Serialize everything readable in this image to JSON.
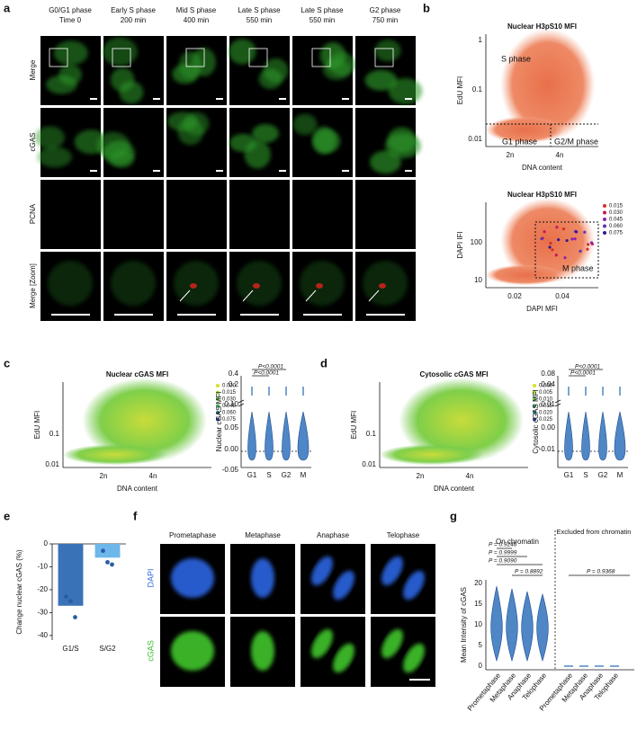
{
  "panel_a": {
    "label": "a",
    "columns": [
      {
        "phase": "G0/G1 phase",
        "time": "Time 0"
      },
      {
        "phase": "Early S phase",
        "time": "200 min"
      },
      {
        "phase": "Mid S phase",
        "time": "400 min"
      },
      {
        "phase": "Late S phase",
        "time": "550 min"
      },
      {
        "phase": "Late S phase",
        "time": "550 min"
      },
      {
        "phase": "G2 phase",
        "time": "750 min"
      }
    ],
    "rows": [
      "Merge",
      "cGAS",
      "PCNA",
      "Merge [Zoom]"
    ]
  },
  "panel_b": {
    "label": "b",
    "top": {
      "title": "Nuclear H3pS10 MFI",
      "y_label": "EdU MFI",
      "x_label": "DNA content",
      "yticks": [
        "1",
        "0.1",
        "0.01"
      ],
      "xticks": [
        "2n",
        "4n"
      ],
      "regions": [
        "S phase",
        "G1 phase",
        "G2/M phase"
      ]
    },
    "bottom": {
      "title": "Nuclear H3pS10 MFI",
      "y_label": "DAPI IFI",
      "x_label": "DAPI MFI",
      "yticks": [
        "100",
        "10"
      ],
      "xticks": [
        "0.02",
        "0.04"
      ],
      "region": "M phase",
      "legend": [
        "0.015",
        "0.030",
        "0.045",
        "0.060",
        "0.075"
      ]
    }
  },
  "panel_c": {
    "label": "c",
    "scatter": {
      "title": "Nuclear cGAS MFI",
      "y_label": "EdU MFI",
      "x_label": "DNA content",
      "yticks": [
        "0.1",
        "0.01"
      ],
      "xticks": [
        "2n",
        "4n"
      ],
      "legend": [
        "0.000",
        "0.015",
        "0.030",
        "0.045",
        "0.060",
        "0.075"
      ]
    },
    "violin": {
      "y_label": "Nuclear cGAS MFI",
      "yticks": [
        "0.4",
        "0.2",
        "0.10",
        "0.05",
        "0.00",
        "-0.05"
      ],
      "categories": [
        "G1",
        "S",
        "G2",
        "M"
      ],
      "pvalues": [
        "P<0.0001",
        "P<0.0001"
      ]
    }
  },
  "panel_d": {
    "label": "d",
    "scatter": {
      "title": "Cytosolic cGAS MFI",
      "y_label": "EdU MFI",
      "x_label": "DNA content",
      "yticks": [
        "0.1",
        "0.01"
      ],
      "xticks": [
        "2n",
        "4n"
      ],
      "legend": [
        "0.000",
        "0.005",
        "0.010",
        "0.015",
        "0.020",
        "0.025"
      ]
    },
    "violin": {
      "y_label": "Cytosolic cGAS MFI",
      "yticks": [
        "0.08",
        "0.04",
        "0.01",
        "0.00",
        "-0.01"
      ],
      "categories": [
        "G1",
        "S",
        "G2",
        "M"
      ],
      "pvalues": [
        "P<0.0001",
        "P<0.0001"
      ]
    }
  },
  "chart_data": {
    "type": "bar",
    "label": "e",
    "y_label": "Change nuclear cGAS (%)",
    "categories": [
      "G1/S",
      "S/G2"
    ],
    "values": [
      -27,
      -6
    ],
    "points": [
      [
        -23,
        -25,
        -32
      ],
      [
        -3,
        -8,
        -9
      ]
    ],
    "colors": [
      "#3a72b8",
      "#6db7ea"
    ],
    "point_color": "#2a5ca6",
    "ylim": [
      -42,
      0
    ],
    "yticks": [
      0,
      -10,
      -20,
      -30,
      -40
    ]
  },
  "panel_f": {
    "label": "f",
    "columns": [
      "Prometaphase",
      "Metaphase",
      "Anaphase",
      "Telophase"
    ],
    "rows": [
      "DAPI",
      "cGAS"
    ]
  },
  "panel_g": {
    "label": "g",
    "y_label": "Mean Intensity of cGAS",
    "yticks": [
      "0",
      "5",
      "10",
      "15",
      "20"
    ],
    "groups": [
      "On chromatin",
      "Excluded from chromatin"
    ],
    "categories": [
      "Prometaphase",
      "Metaphase",
      "Anaphase",
      "Telophase",
      "Prometaphase",
      "Metaphase",
      "Anaphase",
      "Telophase"
    ],
    "pvalues": [
      "P = 0.9246",
      "P = 0.9999",
      "P = 0.9090",
      "P = 0.8892",
      "P = 0.9368"
    ]
  }
}
